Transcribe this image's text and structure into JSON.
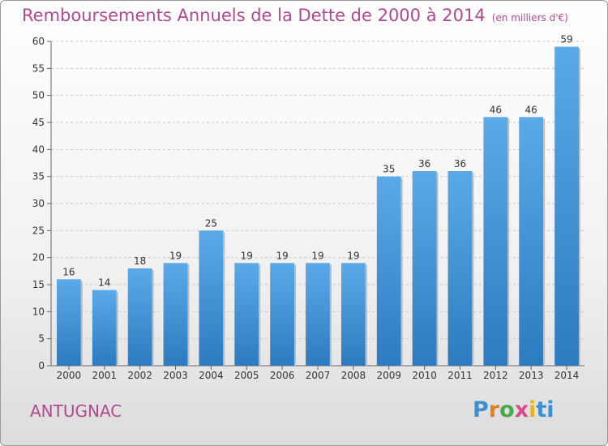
{
  "title": "Remboursements Annuels de la Dette de 2000 à 2014",
  "subtitle": "(en milliers d'€)",
  "commune": "ANTUGNAC",
  "brand": {
    "logo_letters": [
      "P",
      "r",
      "o",
      "x",
      "i",
      "ti"
    ]
  },
  "colors": {
    "title": "#b04a8e",
    "bar_top": "#5aaae8",
    "bar_bottom": "#2d7bc0",
    "grid": "#c8c8c8",
    "axis": "#666666"
  },
  "chart_data": {
    "type": "bar",
    "categories": [
      "2000",
      "2001",
      "2002",
      "2003",
      "2004",
      "2005",
      "2006",
      "2007",
      "2008",
      "2009",
      "2010",
      "2011",
      "2012",
      "2013",
      "2014"
    ],
    "values": [
      16,
      14,
      18,
      19,
      25,
      19,
      19,
      19,
      19,
      35,
      36,
      36,
      46,
      46,
      59
    ],
    "title": "Remboursements Annuels de la Dette de 2000 à 2014",
    "subtitle": "(en milliers d'€)",
    "xlabel": "",
    "ylabel": "",
    "ylim": [
      0,
      60
    ],
    "yticks": [
      0,
      5,
      10,
      15,
      20,
      25,
      30,
      35,
      40,
      45,
      50,
      55,
      60
    ],
    "grid": "horizontal",
    "legend": "none",
    "data_labels": true
  }
}
